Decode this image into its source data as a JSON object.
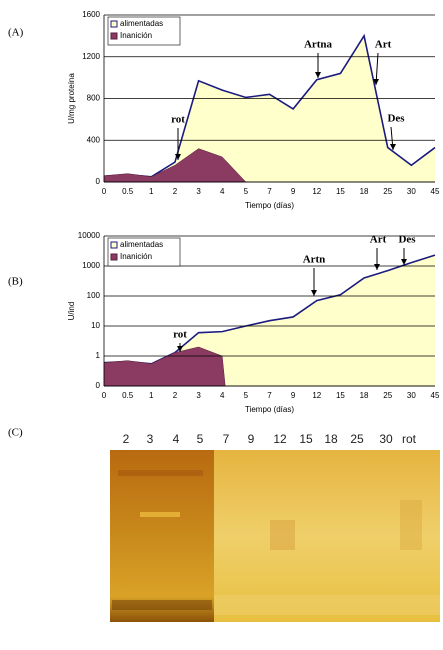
{
  "panel_labels": [
    "(A)",
    "(B)",
    "(C)"
  ],
  "chart_data": [
    {
      "type": "area",
      "y_label": "U/mg proteína",
      "x_label": "Tiempo (días)",
      "categories": [
        "0",
        "0.5",
        "1",
        "2",
        "3",
        "4",
        "5",
        "7",
        "9",
        "12",
        "15",
        "18",
        "25",
        "30",
        "45"
      ],
      "series": [
        {
          "name": "alimentadas",
          "color": "#ffffcc",
          "line_color": "#1a1a80",
          "values": [
            55,
            70,
            50,
            190,
            970,
            880,
            810,
            840,
            700,
            980,
            1040,
            1400,
            330,
            160,
            330
          ]
        },
        {
          "name": "Inanición",
          "color": "#8b3a62",
          "line_color": "#5a1f3c",
          "values": [
            60,
            80,
            50,
            160,
            320,
            240,
            0,
            null,
            null,
            null,
            null,
            null,
            null,
            null,
            null
          ]
        }
      ],
      "ylim": [
        0,
        1600
      ],
      "yticks": [
        0,
        400,
        800,
        1200,
        1600
      ],
      "grid": true,
      "log_scale": false,
      "legend": "upper left",
      "annotations": [
        "rot",
        "Artna",
        "Art",
        "Des"
      ]
    },
    {
      "type": "area",
      "y_label": "U/ind",
      "x_label": "Tiempo (días)",
      "categories": [
        "0",
        "0.5",
        "1",
        "2",
        "3",
        "4",
        "5",
        "7",
        "9",
        "12",
        "15",
        "18",
        "25",
        "30",
        "45"
      ],
      "series": [
        {
          "name": "alimentadas",
          "color": "#ffffcc",
          "line_color": "#1a1a80",
          "values": [
            0.6,
            0.65,
            0.55,
            1.3,
            6,
            6.5,
            10,
            15,
            20,
            70,
            110,
            400,
            700,
            1300,
            2300
          ]
        },
        {
          "name": "Inanición",
          "color": "#8b3a62",
          "line_color": "#5a1f3c",
          "values": [
            0.6,
            0.7,
            0.55,
            1.3,
            2,
            1,
            null,
            null,
            null,
            null,
            null,
            null,
            null,
            null,
            null
          ]
        }
      ],
      "ylim": [
        0.1,
        10000
      ],
      "yticks": [
        {
          "value": 0.1,
          "label": "0"
        },
        1,
        10,
        100,
        1000,
        10000
      ],
      "grid": true,
      "log_scale": true,
      "legend": "upper left",
      "annotations": [
        "rot",
        "Artn",
        "Art",
        "Des"
      ]
    }
  ],
  "gel": {
    "lanes": [
      "2",
      "3",
      "4",
      "5",
      "7",
      "9",
      "12",
      "15",
      "18",
      "25",
      "30",
      "rot"
    ]
  }
}
